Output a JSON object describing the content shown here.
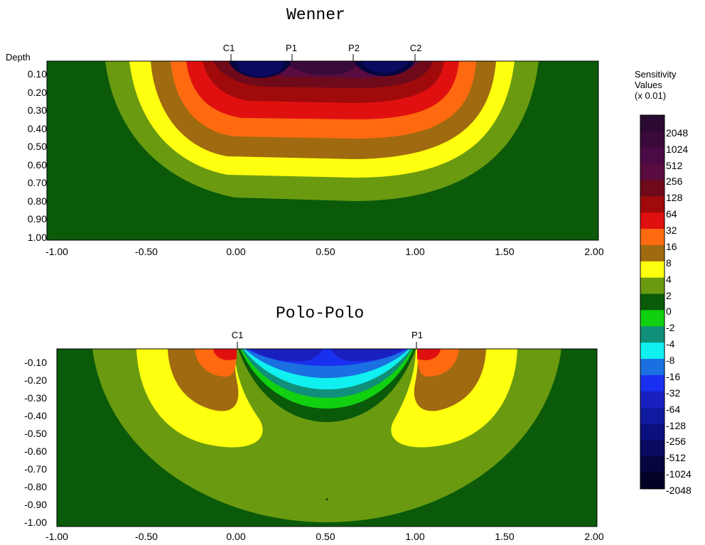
{
  "chart_data": [
    {
      "type": "heatmap",
      "title": "Wenner",
      "ylabel": "Depth",
      "x_ticks": [
        "-1.00",
        "-0.50",
        "0.00",
        "0.50",
        "1.00",
        "1.50",
        "2.00"
      ],
      "y_ticks": [
        "0.10",
        "0.20",
        "0.30",
        "0.40",
        "0.50",
        "0.60",
        "0.70",
        "0.80",
        "0.90",
        "1.00"
      ],
      "xlim": [
        -1.0,
        2.0
      ],
      "ylim": [
        0.0,
        1.0
      ],
      "electrodes": [
        {
          "name": "C1",
          "x": 0.0
        },
        {
          "name": "P1",
          "x": 0.333
        },
        {
          "name": "P2",
          "x": 0.667
        },
        {
          "name": "C2",
          "x": 1.0
        }
      ]
    },
    {
      "type": "heatmap",
      "title": "Polo-Polo",
      "x_ticks": [
        "-1.00",
        "-0.50",
        "0.00",
        "0.50",
        "1.00",
        "1.50",
        "2.00"
      ],
      "y_ticks": [
        "-0.10",
        "-0.20",
        "-0.30",
        "-0.40",
        "-0.50",
        "-0.60",
        "-0.70",
        "-0.80",
        "-0.90",
        "-1.00"
      ],
      "xlim": [
        -1.0,
        2.0
      ],
      "ylim": [
        0.0,
        -1.0
      ],
      "electrodes": [
        {
          "name": "C1",
          "x": 0.0
        },
        {
          "name": "P1",
          "x": 1.0
        }
      ]
    }
  ],
  "legend": {
    "title_lines": [
      "Sensitivity",
      "Values",
      "(x 0.01)"
    ],
    "labels": [
      "2048",
      "1024",
      "512",
      "256",
      "128",
      "64",
      "32",
      "16",
      "8",
      "4",
      "2",
      "0",
      "-2",
      "-4",
      "-8",
      "-16",
      "-32",
      "-64",
      "-128",
      "-256",
      "-512",
      "-1024",
      "-2048"
    ],
    "colors": [
      "#2a0a30",
      "#3a0a3a",
      "#4a0a45",
      "#5a0c40",
      "#6e0a1a",
      "#a00a0a",
      "#e01010",
      "#ff6a10",
      "#a06a10",
      "#ffff10",
      "#6a9a10",
      "#0a5a0a",
      "#10d010",
      "#10907a",
      "#10f0f0",
      "#1a70e0",
      "#1a30f0",
      "#1a20c0",
      "#101aa0",
      "#0a1080",
      "#0a0a60",
      "#050540",
      "#020226"
    ]
  }
}
